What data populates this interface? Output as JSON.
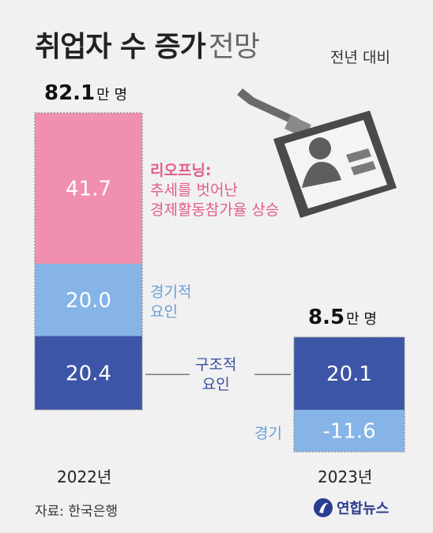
{
  "header": {
    "title_bold": "취업자 수 증가",
    "title_light": "전망",
    "subtitle": "전년 대비"
  },
  "chart_data": {
    "type": "bar",
    "stacked": true,
    "categories": [
      "2022년",
      "2023년"
    ],
    "totals": [
      {
        "value": "82.1",
        "unit": "만 명"
      },
      {
        "value": "8.5",
        "unit": "만 명"
      }
    ],
    "segments": [
      {
        "category": "2022년",
        "value": 20.4,
        "label": "20.4",
        "color": "#3d55a6"
      },
      {
        "category": "2022년",
        "value": 20.0,
        "label": "20.0",
        "color": "#86b4e6"
      },
      {
        "category": "2022년",
        "value": 41.7,
        "label": "41.7",
        "color": "#f090ae"
      },
      {
        "category": "2023년",
        "value": 20.1,
        "label": "20.1",
        "color": "#3d55a6"
      },
      {
        "category": "2023년",
        "value": -11.6,
        "label": "-11.6",
        "color": "#86b4e6"
      }
    ],
    "annotations": {
      "reopening": [
        "리오프닝:",
        "추세를 벗어난",
        "경제활동참가율 상승"
      ],
      "cyclical_2022": [
        "경기적",
        "요인"
      ],
      "structural": [
        "구조적",
        "요인"
      ],
      "cyclical_2023": "경기"
    },
    "ylim": [
      -11.6,
      82.1
    ]
  },
  "footer": {
    "source": "자료: 한국은행",
    "logo_text": "연합뉴스"
  }
}
